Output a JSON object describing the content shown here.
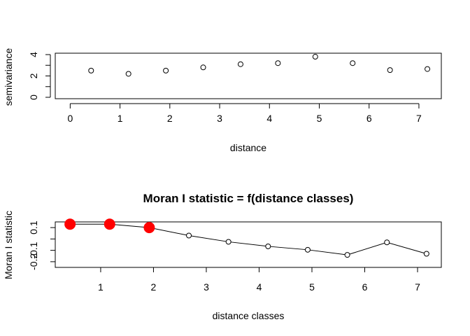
{
  "chart_data": [
    {
      "type": "scatter",
      "title": "",
      "xlabel": "distance",
      "ylabel": "semivariance",
      "xlim": [
        -0.3,
        7.45
      ],
      "ylim": [
        0,
        4
      ],
      "xticks": [
        "0",
        "1",
        "2",
        "3",
        "4",
        "5",
        "6",
        "7"
      ],
      "yticks": [
        "0",
        "2",
        "4"
      ],
      "marker": "open-circle",
      "x": [
        0.42,
        1.17,
        1.92,
        2.67,
        3.42,
        4.17,
        4.92,
        5.67,
        6.42,
        7.17
      ],
      "y": [
        2.5,
        2.2,
        2.5,
        2.8,
        3.1,
        3.2,
        3.8,
        3.2,
        2.55,
        2.65
      ]
    },
    {
      "type": "line",
      "title": "Moran I statistic = f(distance classes)",
      "xlabel": "distance classes",
      "ylabel": "Moran I statistic",
      "xlim": [
        0.14,
        7.45
      ],
      "ylim": [
        -0.25,
        0.15
      ],
      "xticks": [
        "1",
        "2",
        "3",
        "4",
        "5",
        "6",
        "7"
      ],
      "yticks": [
        "-0.2",
        "-0.1",
        "0.1"
      ],
      "significant_color": "#ff0000",
      "x": [
        0.42,
        1.17,
        1.92,
        2.67,
        3.42,
        4.17,
        4.92,
        5.67,
        6.42,
        7.17
      ],
      "y": [
        0.13,
        0.13,
        0.1,
        0.03,
        -0.025,
        -0.065,
        -0.095,
        -0.14,
        -0.03,
        -0.13
      ],
      "significant": [
        true,
        true,
        true,
        false,
        false,
        false,
        false,
        false,
        false,
        false
      ]
    }
  ]
}
